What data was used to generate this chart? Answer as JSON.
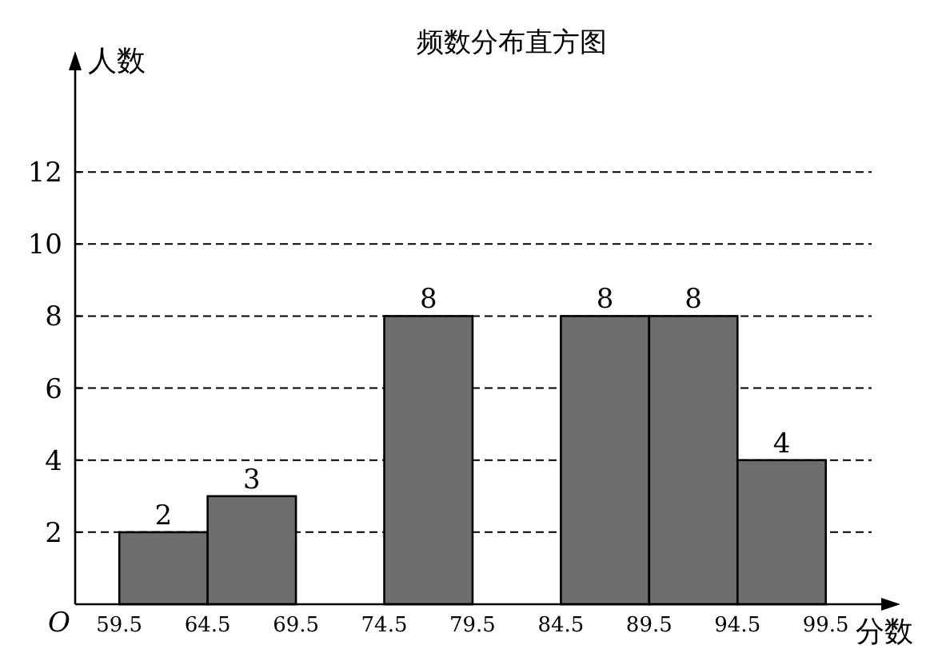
{
  "chart_data": {
    "type": "histogram",
    "title": "频数分布直方图",
    "xlabel": "分数",
    "ylabel": "人数",
    "bins": [
      59.5,
      64.5,
      69.5,
      74.5,
      79.5,
      84.5,
      89.5,
      94.5,
      99.5
    ],
    "values": [
      2,
      3,
      0,
      8,
      0,
      8,
      8,
      4
    ],
    "value_labels": [
      "2",
      "3",
      null,
      "8",
      null,
      "8",
      "8",
      "4"
    ],
    "color": "#6e6e6e",
    "xlim": [
      57,
      103
    ],
    "xticks": [
      59.5,
      64.5,
      69.5,
      74.5,
      79.5,
      84.5,
      89.5,
      94.5,
      99.5
    ],
    "ylim": [
      0,
      15
    ],
    "yticks": [
      {
        "value": 0,
        "label": "O"
      },
      2,
      4,
      6,
      8,
      10,
      12
    ],
    "grid": "y"
  }
}
